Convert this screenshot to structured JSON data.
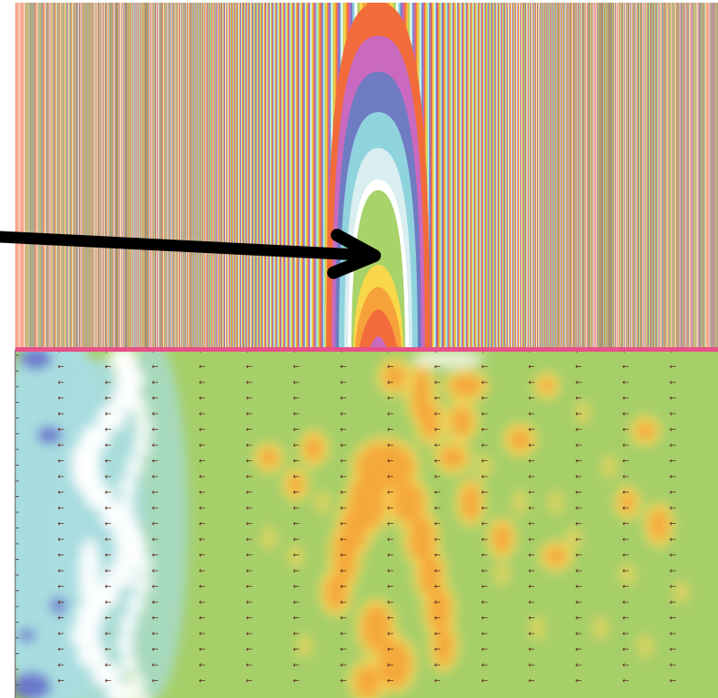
{
  "figure": {
    "top_panel": {
      "description_visible": "",
      "colormap": [
        "#f26b3a",
        "#f6a13a",
        "#f8d74a",
        "#a8d26a",
        "#ffffff",
        "#8fd3dd",
        "#6f7bc2",
        "#c96ac0",
        "#f26b3a"
      ],
      "annotation_arrow_color": "#000000"
    },
    "bottom_panel": {
      "background_colors": {
        "cyan": "#a8dde0",
        "green": "#a6cf6a",
        "yellow": "#f7d65c",
        "orange": "#f4a63a",
        "white": "#ffffff",
        "blue": "#5b5fc9"
      },
      "vector_arrow_color": "#5a2a1a",
      "vector_glyph": "←"
    },
    "separator_color": "#e8508a"
  }
}
